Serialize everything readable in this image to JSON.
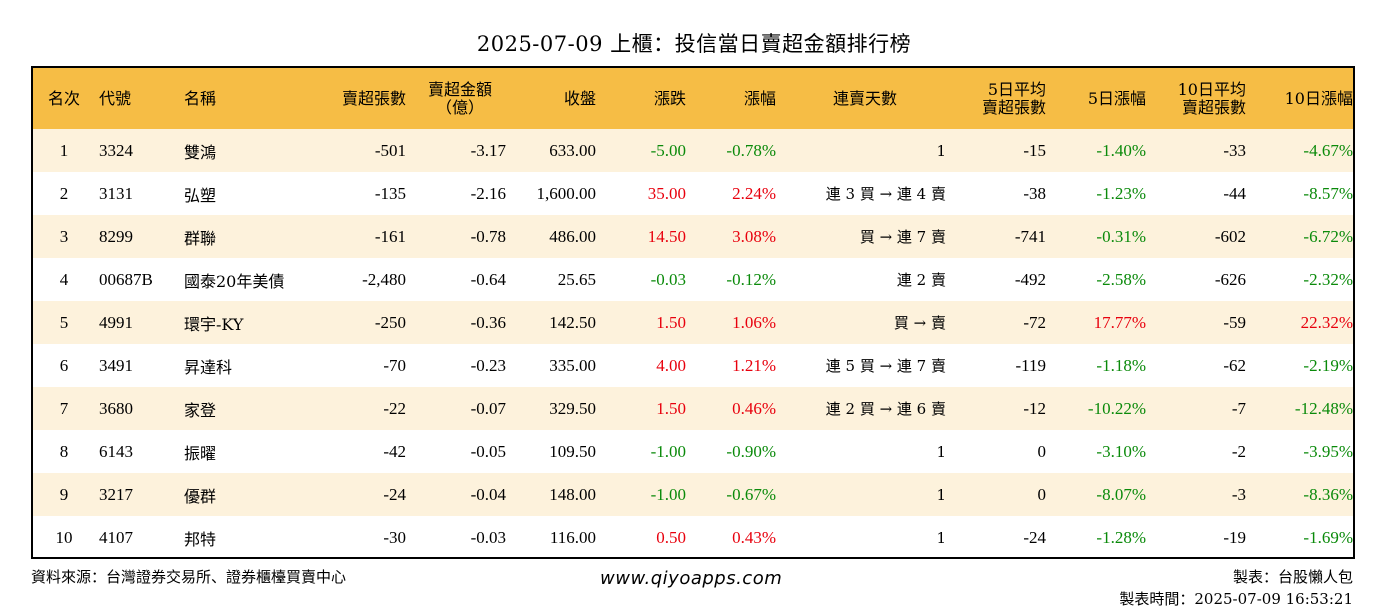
{
  "title": "2025-07-09 上櫃：投信當日賣超金額排行榜",
  "headers": {
    "rank": "名次",
    "code": "代號",
    "name": "名稱",
    "shares": "賣超張數",
    "amount_l1": "賣超金額",
    "amount_l2": "（億）",
    "close": "收盤",
    "change": "漲跌",
    "pct": "漲幅",
    "streak": "連賣天數",
    "avg5_l1": "5日平均",
    "avg5_l2": "賣超張數",
    "pct5": "5日漲幅",
    "avg10_l1": "10日平均",
    "avg10_l2": "賣超張數",
    "pct10": "10日漲幅"
  },
  "rows": [
    {
      "rank": "1",
      "code": "3324",
      "name": "雙鴻",
      "shares": "-501",
      "amount": "-3.17",
      "close": "633.00",
      "change": "-5.00",
      "pct": "-0.78%",
      "streak": "1",
      "avg5": "-15",
      "pct5": "-1.40%",
      "avg10": "-33",
      "pct10": "-4.67%"
    },
    {
      "rank": "2",
      "code": "3131",
      "name": "弘塑",
      "shares": "-135",
      "amount": "-2.16",
      "close": "1,600.00",
      "change": "35.00",
      "pct": "2.24%",
      "streak": "連 3 買 → 連 4 賣",
      "avg5": "-38",
      "pct5": "-1.23%",
      "avg10": "-44",
      "pct10": "-8.57%"
    },
    {
      "rank": "3",
      "code": "8299",
      "name": "群聯",
      "shares": "-161",
      "amount": "-0.78",
      "close": "486.00",
      "change": "14.50",
      "pct": "3.08%",
      "streak": "買 → 連 7 賣",
      "avg5": "-741",
      "pct5": "-0.31%",
      "avg10": "-602",
      "pct10": "-6.72%"
    },
    {
      "rank": "4",
      "code": "00687B",
      "name": "國泰20年美債",
      "shares": "-2,480",
      "amount": "-0.64",
      "close": "25.65",
      "change": "-0.03",
      "pct": "-0.12%",
      "streak": "連 2 賣",
      "avg5": "-492",
      "pct5": "-2.58%",
      "avg10": "-626",
      "pct10": "-2.32%"
    },
    {
      "rank": "5",
      "code": "4991",
      "name": "環宇-KY",
      "shares": "-250",
      "amount": "-0.36",
      "close": "142.50",
      "change": "1.50",
      "pct": "1.06%",
      "streak": "買 → 賣",
      "avg5": "-72",
      "pct5": "17.77%",
      "avg10": "-59",
      "pct10": "22.32%"
    },
    {
      "rank": "6",
      "code": "3491",
      "name": "昇達科",
      "shares": "-70",
      "amount": "-0.23",
      "close": "335.00",
      "change": "4.00",
      "pct": "1.21%",
      "streak": "連 5 買 → 連 7 賣",
      "avg5": "-119",
      "pct5": "-1.18%",
      "avg10": "-62",
      "pct10": "-2.19%"
    },
    {
      "rank": "7",
      "code": "3680",
      "name": "家登",
      "shares": "-22",
      "amount": "-0.07",
      "close": "329.50",
      "change": "1.50",
      "pct": "0.46%",
      "streak": "連 2 買 → 連 6 賣",
      "avg5": "-12",
      "pct5": "-10.22%",
      "avg10": "-7",
      "pct10": "-12.48%"
    },
    {
      "rank": "8",
      "code": "6143",
      "name": "振曜",
      "shares": "-42",
      "amount": "-0.05",
      "close": "109.50",
      "change": "-1.00",
      "pct": "-0.90%",
      "streak": "1",
      "avg5": "0",
      "pct5": "-3.10%",
      "avg10": "-2",
      "pct10": "-3.95%"
    },
    {
      "rank": "9",
      "code": "3217",
      "name": "優群",
      "shares": "-24",
      "amount": "-0.04",
      "close": "148.00",
      "change": "-1.00",
      "pct": "-0.67%",
      "streak": "1",
      "avg5": "0",
      "pct5": "-8.07%",
      "avg10": "-3",
      "pct10": "-8.36%"
    },
    {
      "rank": "10",
      "code": "4107",
      "name": "邦特",
      "shares": "-30",
      "amount": "-0.03",
      "close": "116.00",
      "change": "0.50",
      "pct": "0.43%",
      "streak": "1",
      "avg5": "-24",
      "pct5": "-1.28%",
      "avg10": "-19",
      "pct10": "-1.69%"
    }
  ],
  "footer": {
    "source": "資料來源：台灣證券交易所、證券櫃檯買賣中心",
    "website": "www.qiyoapps.com",
    "maker": "製表：台股懶人包",
    "made_time": "製表時間：2025-07-09 16:53:21"
  },
  "colors": {
    "header_bg": "#f6bd45",
    "row_alt": "#fdf2dc",
    "positive": "#e8000d",
    "negative": "#0a8a0a"
  }
}
